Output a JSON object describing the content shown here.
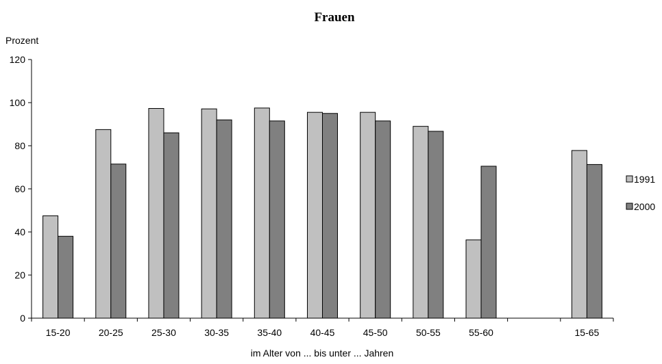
{
  "chart_data": {
    "type": "bar",
    "title": "Frauen",
    "ylabel": "Prozent",
    "xlabel": "im Alter von ... bis unter ... Jahren",
    "ylim": [
      0,
      120
    ],
    "yticks": [
      0,
      20,
      40,
      60,
      80,
      100,
      120
    ],
    "grid": false,
    "legend_position": "right",
    "categories": [
      "15-20",
      "20-25",
      "25-30",
      "30-35",
      "35-40",
      "40-45",
      "45-50",
      "50-55",
      "55-60",
      "",
      "15-65"
    ],
    "series": [
      {
        "name": "1991",
        "color": "#c0c0c0",
        "values": [
          47.5,
          87.5,
          97.3,
          97.1,
          97.5,
          95.5,
          95.5,
          89,
          36.3,
          null,
          77.8
        ]
      },
      {
        "name": "2000",
        "color": "#808080",
        "values": [
          38,
          71.5,
          86,
          92,
          91.5,
          95,
          91.5,
          86.7,
          70.5,
          null,
          71.3
        ]
      }
    ]
  }
}
